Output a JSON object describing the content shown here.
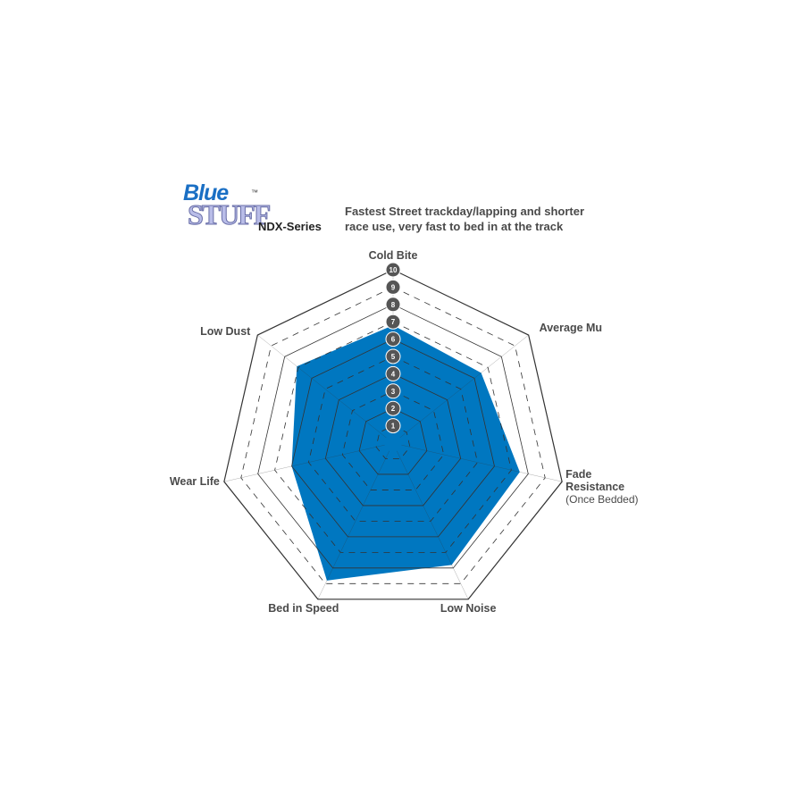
{
  "logo": {
    "line1": "Blue",
    "line2": "STUFF",
    "trademark": "™"
  },
  "series_name": "NDX-Series",
  "description": [
    "Fastest Street trackday/lapping and shorter",
    "race use, very fast to bed in at the track"
  ],
  "chart_data": {
    "type": "radar",
    "axes": [
      "Cold Bite",
      "Average Mu",
      "Fade Resistance",
      "Low Noise",
      "Bed in Speed",
      "Wear Life",
      "Low Dust"
    ],
    "axis_sublabels": {
      "Fade Resistance": "(Once Bedded)"
    },
    "values": [
      6.8,
      6.5,
      7.5,
      7.8,
      8.8,
      6.0,
      7.1
    ],
    "range": [
      0,
      10
    ],
    "ticks": [
      "1",
      "2",
      "3",
      "4",
      "5",
      "6",
      "7",
      "8",
      "9",
      "10"
    ],
    "fill_color": "#0077c0",
    "grid": true
  }
}
